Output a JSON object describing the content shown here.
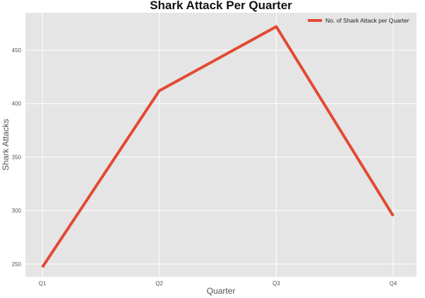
{
  "chart_data": {
    "type": "line",
    "title": "Shark Attack Per Quarter",
    "xlabel": "Quarter",
    "ylabel": "Shark Attacks",
    "categories": [
      "Q1",
      "Q2",
      "Q3",
      "Q4"
    ],
    "series": [
      {
        "name": "No. of Shark Attack per Quarter",
        "values": [
          247,
          412,
          472,
          295
        ],
        "color": "#e24a33"
      }
    ],
    "ylim": [
      238,
      485
    ],
    "yticks": [
      250,
      300,
      350,
      400,
      450
    ],
    "grid": true,
    "legend_position": "top-right",
    "background": "#e5e5e5",
    "grid_color": "#ffffff"
  }
}
